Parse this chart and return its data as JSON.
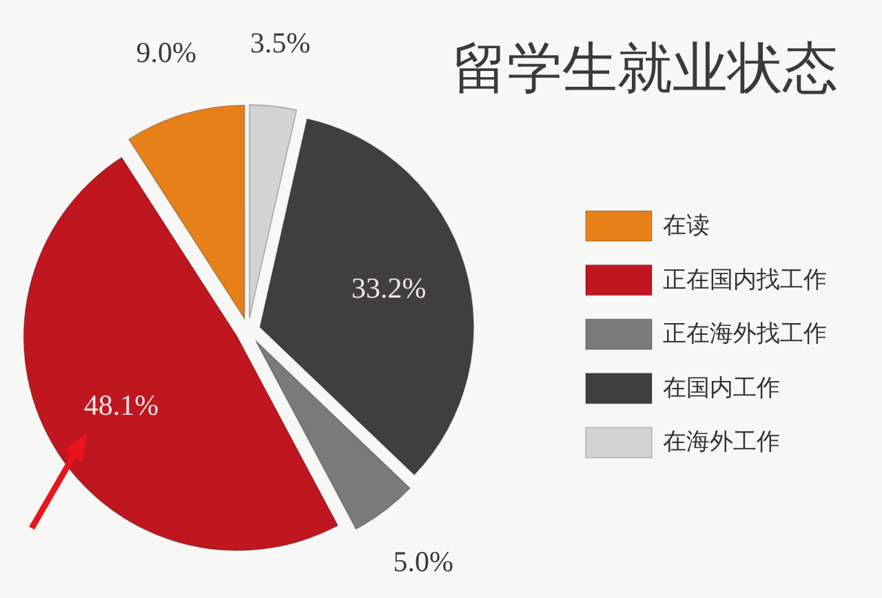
{
  "chart_data": {
    "type": "pie",
    "title": "留学生就业状态",
    "categories": [
      "在读",
      "正在国内找工作",
      "正在海外找工作",
      "在国内工作",
      "在海外工作"
    ],
    "values": [
      9.0,
      48.1,
      5.0,
      33.2,
      3.5
    ],
    "value_labels": [
      "9.0%",
      "48.1%",
      "5.0%",
      "33.2%",
      "3.5%"
    ],
    "colors": [
      "#e8801a",
      "#c0161f",
      "#7a7a7a",
      "#3f3f3f",
      "#d3d3d3"
    ],
    "legend": "right"
  }
}
